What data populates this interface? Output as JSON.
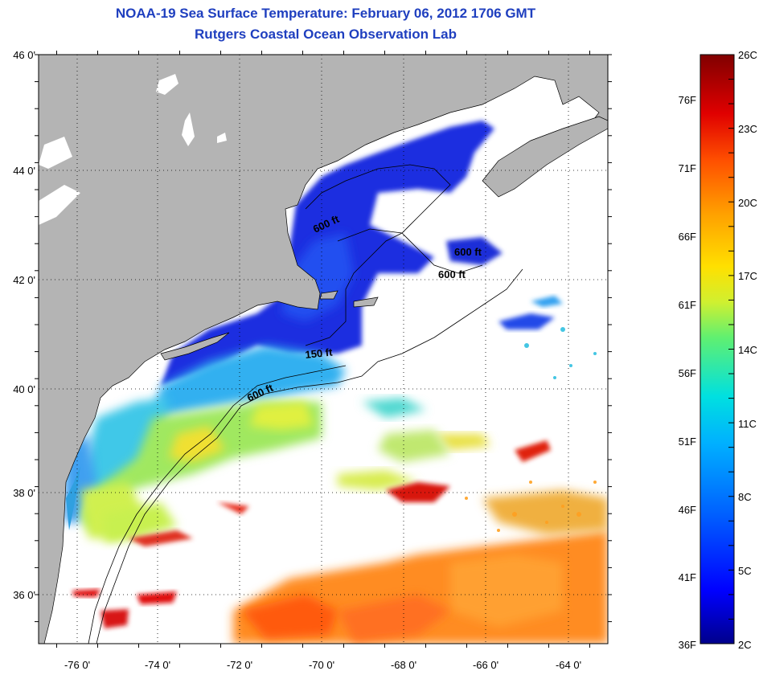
{
  "header": {
    "title": "NOAA-19 Sea Surface Temperature:  February 06, 2012 1706 GMT",
    "subtitle": "Rutgers Coastal Ocean Observation Lab"
  },
  "map": {
    "lat_labels": [
      "46 0'",
      "44 0'",
      "42 0'",
      "40 0'",
      "38 0'",
      "36 0'"
    ],
    "lon_labels": [
      "-76 0'",
      "-74 0'",
      "-72 0'",
      "-70 0'",
      "-68 0'",
      "-66 0'",
      "-64 0'"
    ],
    "lat_range": [
      35,
      46
    ],
    "lon_range": [
      -77,
      -63
    ],
    "land_color": "#b4b4b4",
    "cloud_color": "#ffffff",
    "contour_labels": [
      "600 ft",
      "600 ft",
      "600 ft",
      "150 ft",
      "600 ft"
    ]
  },
  "colorbar": {
    "celsius_labels": [
      "26C",
      "23C",
      "20C",
      "17C",
      "14C",
      "11C",
      "8C",
      "5C",
      "2C"
    ],
    "fahrenheit_labels": [
      "76F",
      "71F",
      "66F",
      "61F",
      "56F",
      "51F",
      "46F",
      "41F",
      "36F"
    ],
    "range_c": [
      2,
      26
    ],
    "colors": [
      "#00008b",
      "#0000ff",
      "#0060ff",
      "#00b0ff",
      "#00e0e0",
      "#60f070",
      "#d0f030",
      "#ffe000",
      "#ffa000",
      "#ff5000",
      "#e00000",
      "#800000"
    ]
  }
}
